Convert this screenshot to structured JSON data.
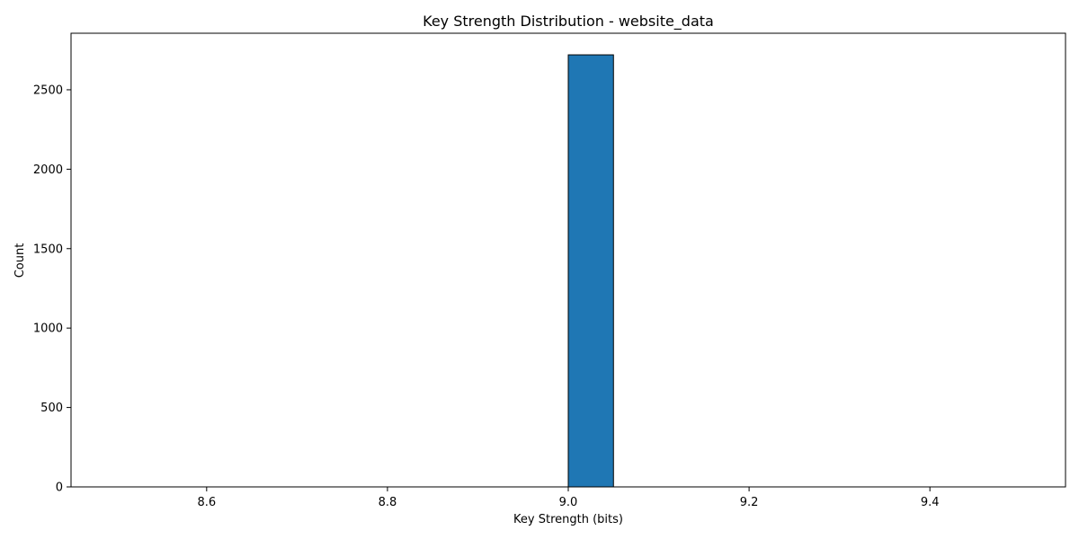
{
  "chart_data": {
    "type": "bar",
    "title": "Key Strength Distribution - website_data",
    "xlabel": "Key Strength (bits)",
    "ylabel": "Count",
    "xlim": [
      8.45,
      9.55
    ],
    "ylim": [
      0,
      2856
    ],
    "bin_edges": [
      8.5,
      8.55,
      8.6,
      8.65,
      8.7,
      8.75,
      8.8,
      8.85,
      8.9,
      8.95,
      9.0,
      9.05,
      9.1,
      9.15,
      9.2,
      9.25,
      9.3,
      9.35,
      9.4,
      9.45,
      9.5
    ],
    "counts": [
      0,
      0,
      0,
      0,
      0,
      0,
      0,
      0,
      0,
      0,
      2720,
      0,
      0,
      0,
      0,
      0,
      0,
      0,
      0,
      0
    ],
    "x_ticks": [
      8.6,
      8.8,
      9.0,
      9.2,
      9.4
    ],
    "x_tick_labels": [
      "8.6",
      "8.8",
      "9.0",
      "9.2",
      "9.4"
    ],
    "y_ticks": [
      0,
      500,
      1000,
      1500,
      2000,
      2500
    ],
    "y_tick_labels": [
      "0",
      "500",
      "1000",
      "1500",
      "2000",
      "2500"
    ],
    "grid": false,
    "bar_color": "#1f77b4",
    "edge_color": "#000000"
  }
}
